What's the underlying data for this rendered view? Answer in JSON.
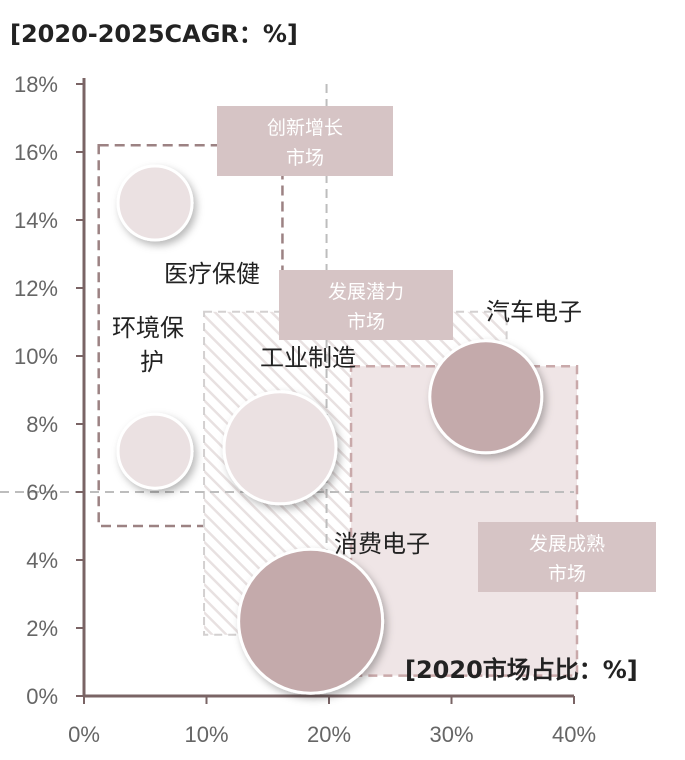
{
  "y_axis_title": "[2020-2025CAGR：%]",
  "x_axis_title": "[2020市场占比：%]",
  "chart_data": {
    "type": "scatter",
    "title": "",
    "xlabel": "[2020市场占比：%]",
    "ylabel": "[2020-2025CAGR：%]",
    "xlim": [
      0,
      40
    ],
    "ylim": [
      0,
      18
    ],
    "x_ticks": [
      "0%",
      "10%",
      "20%",
      "30%",
      "40%"
    ],
    "y_ticks": [
      "0%",
      "2%",
      "4%",
      "6%",
      "8%",
      "10%",
      "12%",
      "14%",
      "16%",
      "18%"
    ],
    "reference_lines": {
      "x": 19.8,
      "y": 6
    },
    "grid": false,
    "points": [
      {
        "name": "医疗保健",
        "x": 5.8,
        "y": 14.5,
        "size": "small",
        "color": "#ebe1e2"
      },
      {
        "name": "环境保护",
        "x": 5.8,
        "y": 7.2,
        "size": "small",
        "color": "#ebe1e2"
      },
      {
        "name": "工业制造",
        "x": 16.0,
        "y": 7.3,
        "size": "medium",
        "color": "#ebe1e2"
      },
      {
        "name": "汽车电子",
        "x": 32.8,
        "y": 8.8,
        "size": "medium",
        "color": "#c4aaab"
      },
      {
        "name": "消费电子",
        "x": 18.5,
        "y": 2.2,
        "size": "large",
        "color": "#c4aaab"
      }
    ],
    "zones": [
      {
        "name": "创新增长市场",
        "x_range": [
          1.2,
          16.2
        ],
        "y_range": [
          5.0,
          16.2
        ],
        "style": "dashed-outline"
      },
      {
        "name": "发展潜力市场",
        "x_range": [
          9.8,
          34.5
        ],
        "y_range": [
          1.8,
          11.3
        ],
        "style": "hatched"
      },
      {
        "name": "发展成熟市场",
        "x_range": [
          21.8,
          42.0
        ],
        "y_range": [
          0.6,
          9.7
        ],
        "style": "shaded"
      }
    ]
  }
}
